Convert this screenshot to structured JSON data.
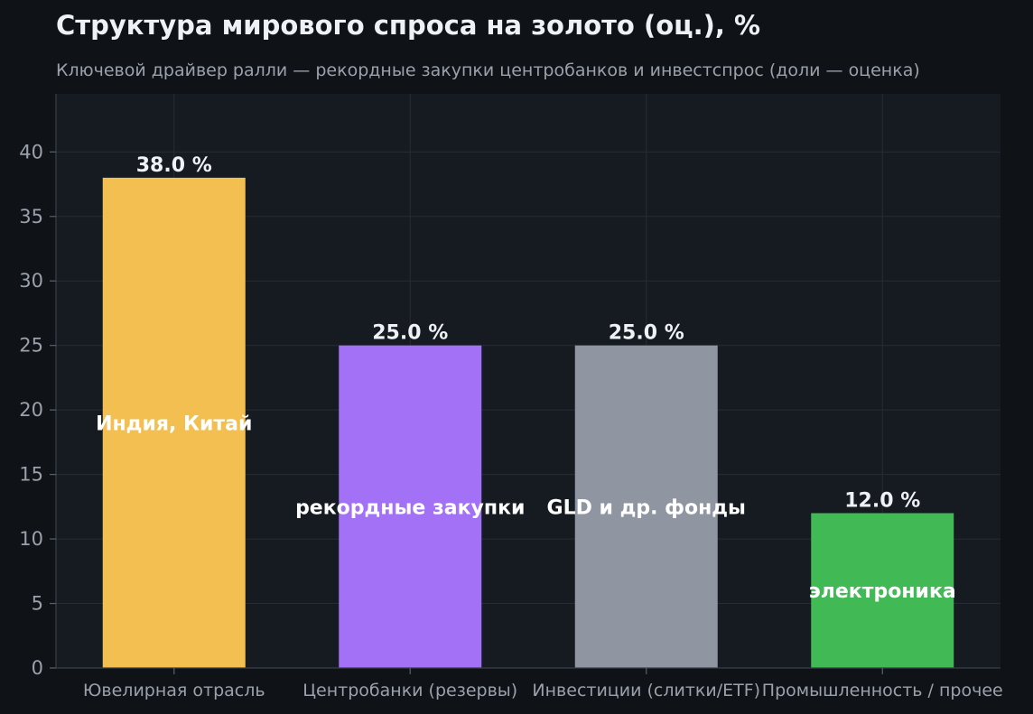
{
  "chart_data": {
    "type": "bar",
    "title": "Структура мирового спроса на золото (оц.), %",
    "subtitle": "Ключевой драйвер ралли — рекордные закупки центробанков и инвестспрос (доли — оценка)",
    "categories": [
      "Ювелирная отрасль",
      "Центробанки (резервы)",
      "Инвестиции (слитки/ETF)",
      "Промышленность / прочее"
    ],
    "values": [
      38.0,
      25.0,
      25.0,
      12.0
    ],
    "value_labels": [
      "38.0 %",
      "25.0 %",
      "25.0 %",
      "12.0 %"
    ],
    "annotations": [
      "Индия, Китай",
      "рекордные закупки",
      "GLD и др. фонды",
      "электроника"
    ],
    "colors": [
      "#f2bf50",
      "#a271f5",
      "#8f96a1",
      "#41b955"
    ],
    "ylim": [
      0,
      44.5
    ],
    "yticks": [
      0,
      5,
      10,
      15,
      20,
      25,
      30,
      35,
      40
    ],
    "grid": true,
    "xlabel": "",
    "ylabel": ""
  }
}
